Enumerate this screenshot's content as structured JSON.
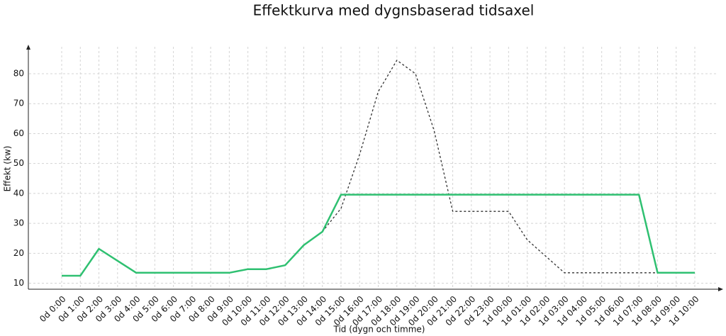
{
  "chart_data": {
    "type": "line",
    "title": "Effektkurva med dygnsbaserad tidsaxel",
    "xlabel": "Tid (dygn och timme)",
    "ylabel": "Effekt (kw)",
    "categories": [
      "0d 0:00",
      "0d 1:00",
      "0d 2:00",
      "0d 3:00",
      "0d 4:00",
      "0d 5:00",
      "0d 6:00",
      "0d 7:00",
      "0d 8:00",
      "0d 9:00",
      "0d 10:00",
      "0d 11:00",
      "0d 12:00",
      "0d 13:00",
      "0d 14:00",
      "0d 15:00",
      "0d 16:00",
      "0d 17:00",
      "0d 18:00",
      "0d 19:00",
      "0d 20:00",
      "0d 21:00",
      "0d 22:00",
      "0d 23:00",
      "1d 00:00",
      "1d 01:00",
      "1d 02:00",
      "1d 03:00",
      "1d 04:00",
      "1d 05:00",
      "1d 06:00",
      "1d 07:00",
      "1d 08:00",
      "1d 09:00",
      "1d 10:00"
    ],
    "series": [
      {
        "color": "#8a8a8a",
        "dashed": true,
        "values": [
          null,
          null,
          null,
          null,
          null,
          null,
          null,
          null,
          null,
          null,
          null,
          null,
          null,
          null,
          27.2,
          35,
          53,
          74,
          84.5,
          80,
          61,
          34,
          34,
          34,
          34,
          24.5,
          19,
          13.5,
          13.5,
          13.5,
          13.5,
          13.5,
          13.5,
          null,
          null
        ]
      },
      {
        "color": "#2fc071",
        "values": [
          12.5,
          12.5,
          21.5,
          17.5,
          13.5,
          13.5,
          13.5,
          13.5,
          13.5,
          13.5,
          14.7,
          14.7,
          16,
          22.7,
          27.2,
          39.6,
          39.6,
          39.6,
          39.6,
          39.6,
          39.6,
          39.6,
          39.6,
          39.6,
          39.6,
          39.6,
          39.6,
          39.6,
          39.6,
          39.6,
          39.6,
          39.6,
          13.5,
          13.5,
          13.5
        ]
      }
    ],
    "ylim": [
      8,
      89
    ],
    "yticks": [
      10,
      20,
      30,
      40,
      50,
      60,
      70,
      80
    ],
    "grid": true
  }
}
